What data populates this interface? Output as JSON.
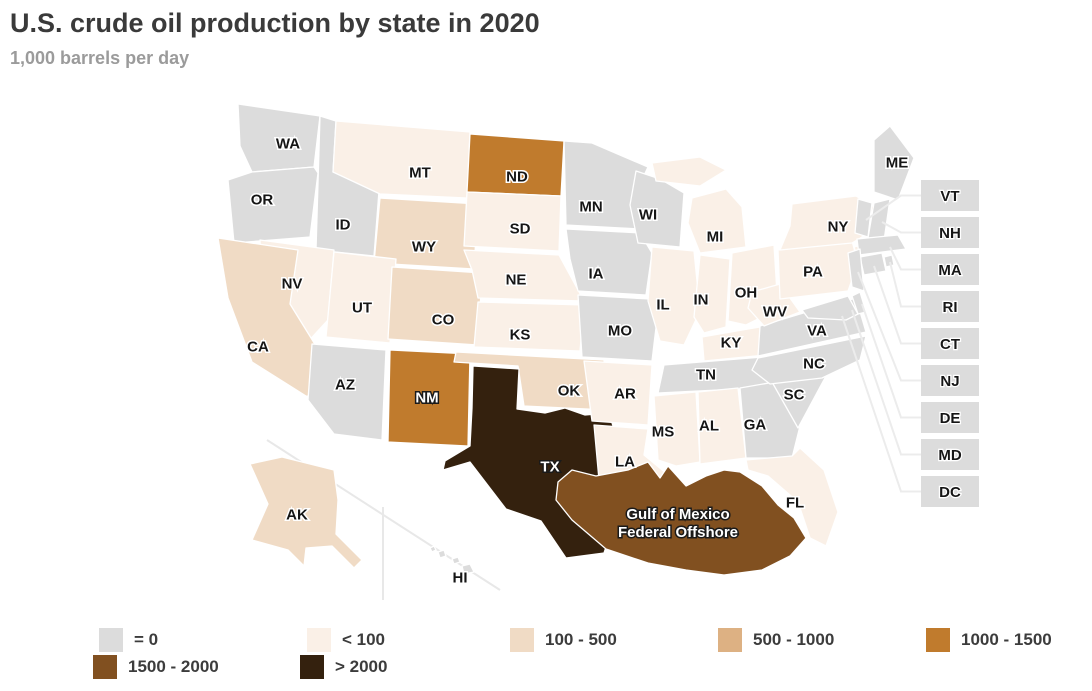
{
  "title": "U.S. crude oil production by state in 2020",
  "subtitle": "1,000 barrels per day",
  "legend": [
    {
      "label": "= 0",
      "color": "#dcdcdc"
    },
    {
      "label": "< 100",
      "color": "#faf0e7"
    },
    {
      "label": "100 - 500",
      "color": "#f0dbc5"
    },
    {
      "label": "500 - 1000",
      "color": "#ddb183"
    },
    {
      "label": "1000 - 1500",
      "color": "#c07b2d"
    },
    {
      "label": "1500 - 2000",
      "color": "#815020"
    },
    {
      "label": "> 2000",
      "color": "#34210e"
    }
  ],
  "map": {
    "stroke_color": "#ffffff",
    "gulf": {
      "code": "GULF",
      "label_line1": "Gulf of Mexico",
      "label_line2": "Federal Offshore",
      "bin": "1500 - 2000"
    },
    "states": {
      "WA": "= 0",
      "OR": "= 0",
      "ID": "= 0",
      "MT": "< 100",
      "WY": "100 - 500",
      "NV": "< 100",
      "UT": "< 100",
      "CA": "100 - 500",
      "AZ": "= 0",
      "NM": "1000 - 1500",
      "CO": "100 - 500",
      "ND": "1000 - 1500",
      "SD": "< 100",
      "NE": "< 100",
      "KS": "< 100",
      "OK": "100 - 500",
      "TX": "> 2000",
      "MN": "= 0",
      "IA": "= 0",
      "MO": "= 0",
      "AR": "< 100",
      "LA": "< 100",
      "WI": "= 0",
      "IL": "< 100",
      "IN": "< 100",
      "OH": "< 100",
      "MI": "< 100",
      "KY": "< 100",
      "TN": "= 0",
      "MS": "< 100",
      "AL": "< 100",
      "GA": "= 0",
      "FL": "< 100",
      "SC": "= 0",
      "NC": "= 0",
      "VA": "= 0",
      "WV": "< 100",
      "PA": "< 100",
      "NY": "< 100",
      "ME": "= 0",
      "VT": "= 0",
      "NH": "= 0",
      "MA": "= 0",
      "RI": "= 0",
      "CT": "= 0",
      "NJ": "= 0",
      "DE": "= 0",
      "MD": "= 0",
      "DC": "= 0",
      "AK": "100 - 500",
      "HI": "= 0"
    }
  },
  "chart_data": {
    "type": "choropleth",
    "title": "U.S. crude oil production by state in 2020",
    "units": "1,000 barrels per day",
    "legend_bins": [
      "= 0",
      "< 100",
      "100 - 500",
      "500 - 1000",
      "1000 - 1500",
      "1500 - 2000",
      "> 2000"
    ],
    "legend_position": "bottom",
    "regions": {
      "WA": "= 0",
      "OR": "= 0",
      "ID": "= 0",
      "MT": "< 100",
      "WY": "100 - 500",
      "NV": "< 100",
      "UT": "< 100",
      "CA": "100 - 500",
      "AZ": "= 0",
      "NM": "1000 - 1500",
      "CO": "100 - 500",
      "ND": "1000 - 1500",
      "SD": "< 100",
      "NE": "< 100",
      "KS": "< 100",
      "OK": "100 - 500",
      "TX": "> 2000",
      "MN": "= 0",
      "IA": "= 0",
      "MO": "= 0",
      "AR": "< 100",
      "LA": "< 100",
      "WI": "= 0",
      "IL": "< 100",
      "IN": "< 100",
      "OH": "< 100",
      "MI": "< 100",
      "KY": "< 100",
      "TN": "= 0",
      "MS": "< 100",
      "AL": "< 100",
      "GA": "= 0",
      "FL": "< 100",
      "SC": "= 0",
      "NC": "= 0",
      "VA": "= 0",
      "WV": "< 100",
      "PA": "< 100",
      "NY": "< 100",
      "ME": "= 0",
      "VT": "= 0",
      "NH": "= 0",
      "MA": "= 0",
      "RI": "= 0",
      "CT": "= 0",
      "NJ": "= 0",
      "DE": "= 0",
      "MD": "= 0",
      "DC": "= 0",
      "AK": "100 - 500",
      "HI": "= 0",
      "Gulf of Mexico Federal Offshore": "1500 - 2000"
    }
  }
}
